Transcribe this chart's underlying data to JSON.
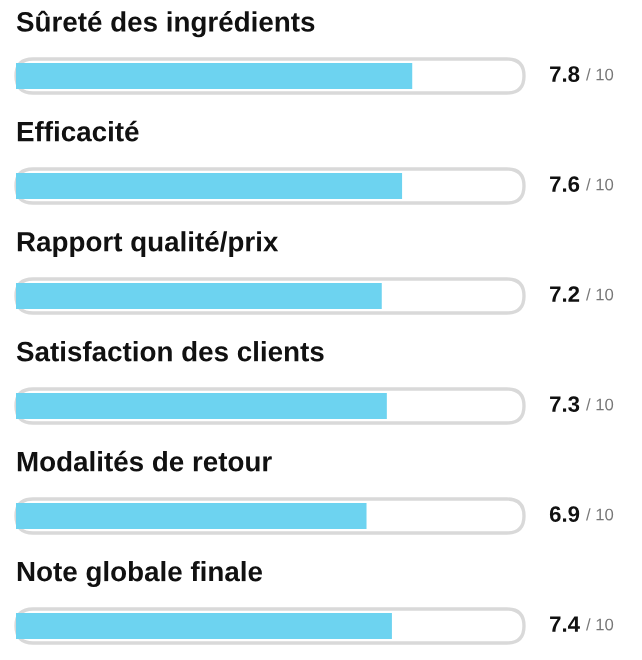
{
  "chart_data": {
    "type": "bar",
    "orientation": "horizontal",
    "categories": [
      "Sûreté des ingrédients",
      "Efficacité",
      "Rapport qualité/prix",
      "Satisfaction des clients",
      "Modalités de retour",
      "Note globale finale"
    ],
    "values": [
      7.8,
      7.6,
      7.2,
      7.3,
      6.9,
      7.4
    ],
    "data_labels": true,
    "annotations": [
      "/ 10",
      "/ 10",
      "/ 10",
      "/ 10",
      "/ 10",
      "/ 10"
    ],
    "color": "#6dd3f0",
    "xlim": [
      0,
      10
    ],
    "tick_labels": false
  }
}
